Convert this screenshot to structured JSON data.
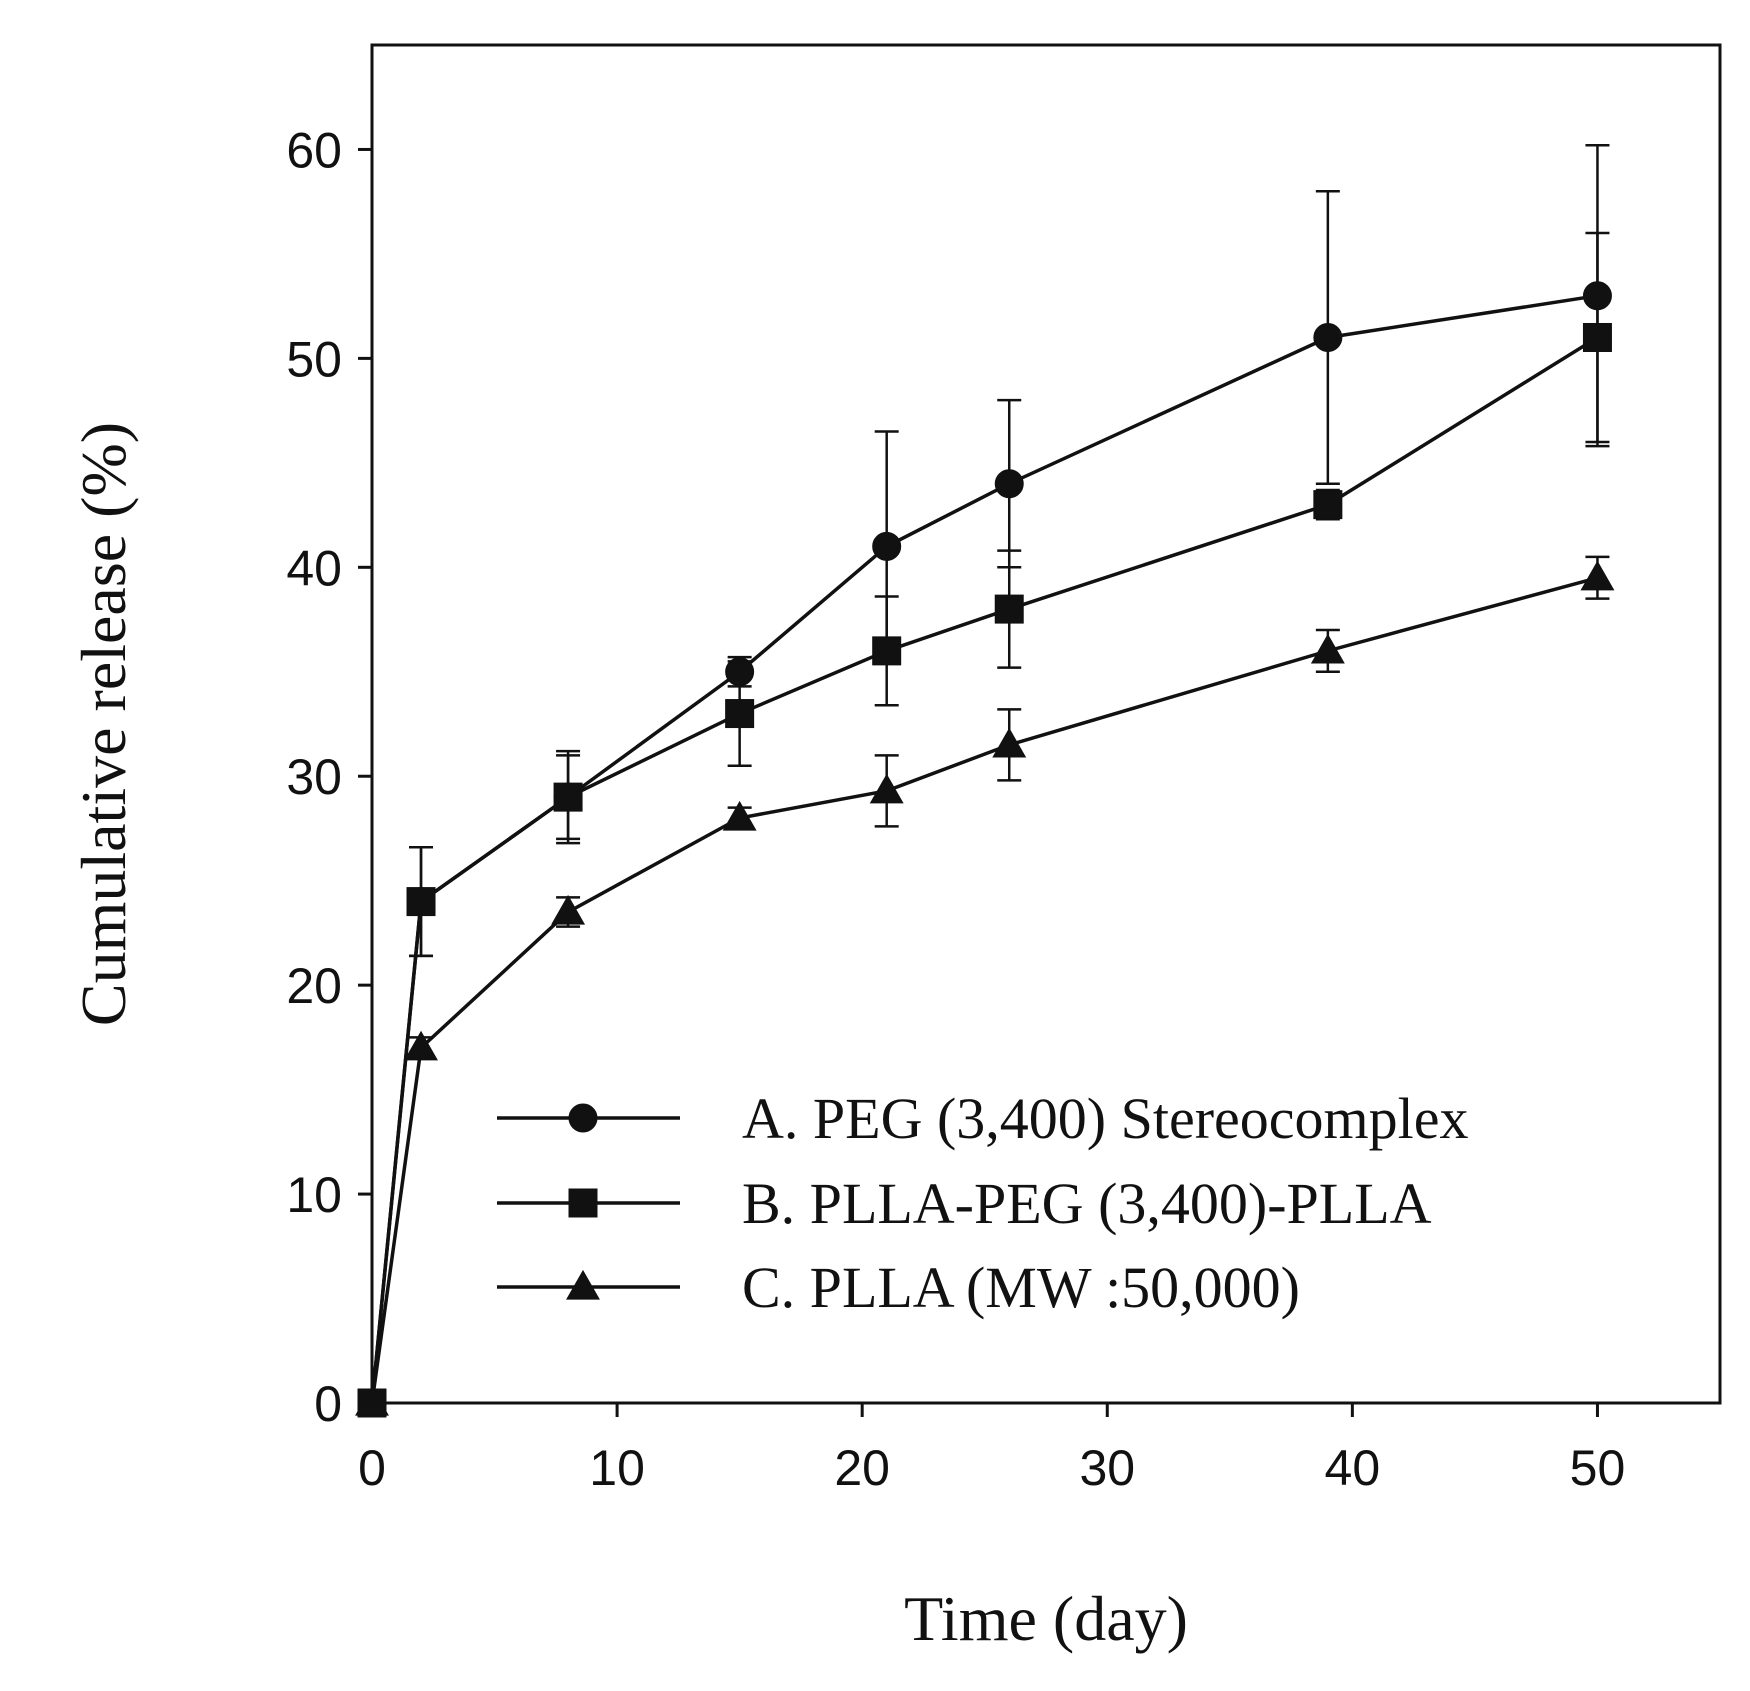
{
  "chart_data": {
    "type": "line",
    "title": "",
    "xlabel": "Time (day)",
    "ylabel": "Cumulative release (%)",
    "xlim": [
      0,
      55
    ],
    "ylim": [
      0,
      65
    ],
    "xticks": [
      0,
      10,
      20,
      30,
      40,
      50
    ],
    "yticks": [
      0,
      10,
      20,
      30,
      40,
      50,
      60
    ],
    "x": [
      0,
      2,
      8,
      15,
      21,
      26,
      39,
      50
    ],
    "legend_position": "lower-right",
    "grid": false,
    "series": [
      {
        "name": "A. PEG (3,400) Stereocomplex",
        "marker": "circle",
        "values": [
          0,
          24,
          29,
          35,
          41,
          44,
          51,
          53
        ],
        "errors": [
          0,
          2.6,
          2.2,
          0.7,
          5.5,
          4,
          7,
          7.2
        ]
      },
      {
        "name": "B. PLLA-PEG (3,400)-PLLA",
        "marker": "square",
        "values": [
          0,
          24,
          29,
          33,
          36,
          38,
          43,
          51
        ],
        "errors": [
          0,
          2.6,
          2,
          2.5,
          2.6,
          2.8,
          0.7,
          5
        ]
      },
      {
        "name": "C. PLLA (MW :50,000)",
        "marker": "triangle",
        "values": [
          0,
          17,
          23.5,
          28,
          29.3,
          31.5,
          36,
          39.5
        ],
        "errors": [
          0,
          0.5,
          0.7,
          0.5,
          1.7,
          1.7,
          1,
          1
        ]
      }
    ]
  }
}
